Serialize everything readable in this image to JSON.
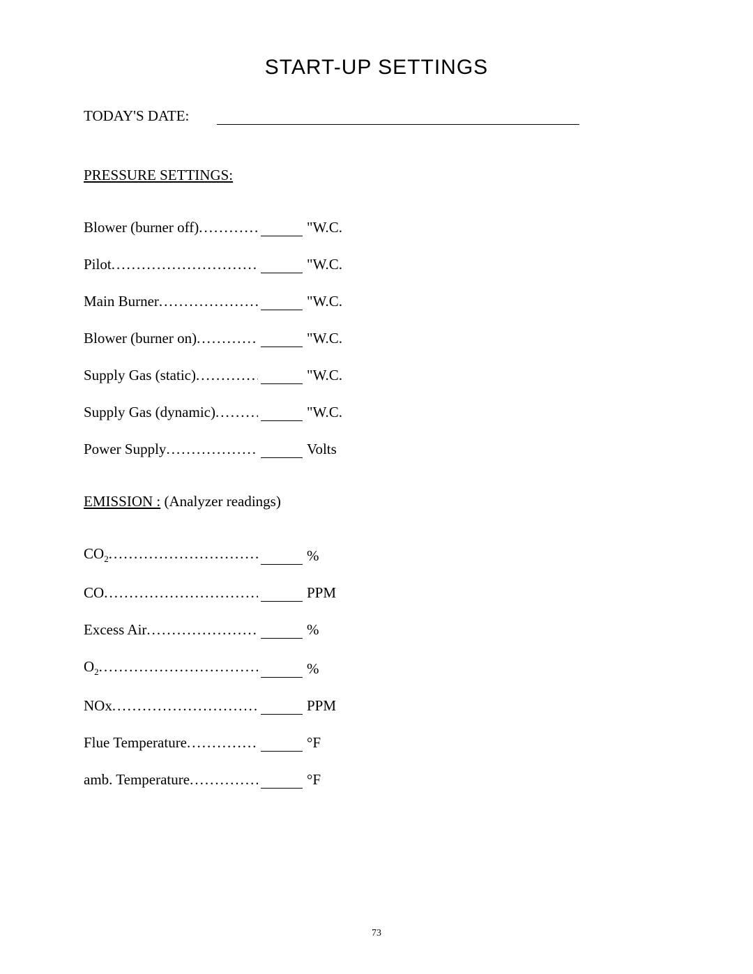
{
  "title": "START-UP SETTINGS",
  "dateLabel": "TODAY'S DATE:",
  "dateValue": "",
  "pressure": {
    "heading": "PRESSURE SETTINGS:",
    "rows": [
      {
        "label": "Blower (burner off)",
        "value": "",
        "unit": "\"W.C."
      },
      {
        "label": "Pilot",
        "value": "",
        "unit": "\"W.C."
      },
      {
        "label": "Main Burner",
        "value": "",
        "unit": "\"W.C."
      },
      {
        "label": "Blower (burner on)",
        "value": "",
        "unit": "\"W.C."
      },
      {
        "label": "Supply Gas (static)",
        "value": "",
        "unit": "\"W.C."
      },
      {
        "label": "Supply Gas (dynamic)",
        "value": "",
        "unit": "\"W.C."
      },
      {
        "label": "Power Supply",
        "value": "",
        "unit": "Volts"
      }
    ]
  },
  "emission": {
    "headingUnderlined": "EMISSION :",
    "headingRest": "  (Analyzer readings)",
    "rows": [
      {
        "label": "CO",
        "sub": "2",
        "value": "",
        "unit": " %"
      },
      {
        "label": "CO",
        "sub": "",
        "value": "",
        "unit": "PPM"
      },
      {
        "label": "Excess Air",
        "sub": "",
        "value": "",
        "unit": "%"
      },
      {
        "label": "O",
        "sub": "2",
        "value": "",
        "unit": "%"
      },
      {
        "label": "NOx",
        "sub": "",
        "value": "",
        "unit": "PPM"
      },
      {
        "label": "Flue Temperature",
        "sub": "",
        "value": "",
        "unit": "°F"
      },
      {
        "label": "amb. Temperature",
        "sub": "",
        "value": "",
        "unit": "°F"
      }
    ]
  },
  "pageNumber": "73"
}
